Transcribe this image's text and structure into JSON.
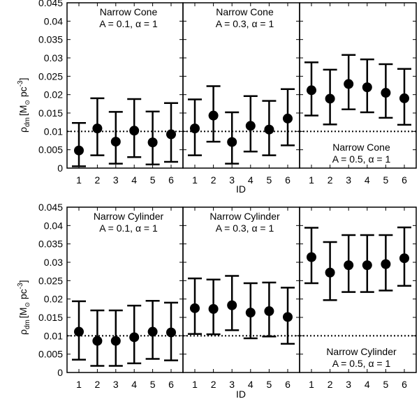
{
  "chart_data": {
    "type": "scatter",
    "title": "",
    "xlabel": "ID",
    "ylabel_main": "ρ",
    "ylabel_sub": "dm",
    "ylabel_units": "[M",
    "ylabel_units_sun": "⊙",
    "ylabel_units_pc": " pc",
    "ylabel_units_exp": "-3",
    "ylabel_units_close": "]",
    "ylim": [
      0,
      0.045
    ],
    "yticks": [
      "0",
      "0.005",
      "0.01",
      "0.015",
      "0.02",
      "0.025",
      "0.03",
      "0.035",
      "0.04",
      "0.045"
    ],
    "ytick_values": [
      0,
      0.005,
      0.01,
      0.015,
      0.02,
      0.025,
      0.03,
      0.035,
      0.04,
      0.045
    ],
    "categories": [
      "1",
      "2",
      "3",
      "4",
      "5",
      "6"
    ],
    "reference_line": 0.01,
    "rows": [
      {
        "name": "Narrow Cone",
        "panels": [
          {
            "label_line1": "Narrow Cone",
            "label_line2": "A = 0.1, α = 1",
            "label_position": "top",
            "points": [
              {
                "id": 1,
                "value": 0.0048,
                "low": 0.0005,
                "high": 0.0123
              },
              {
                "id": 2,
                "value": 0.0108,
                "low": 0.0035,
                "high": 0.019
              },
              {
                "id": 3,
                "value": 0.0072,
                "low": 0.0012,
                "high": 0.0153
              },
              {
                "id": 4,
                "value": 0.0102,
                "low": 0.003,
                "high": 0.0188
              },
              {
                "id": 5,
                "value": 0.007,
                "low": 0.001,
                "high": 0.0154
              },
              {
                "id": 6,
                "value": 0.0092,
                "low": 0.0017,
                "high": 0.0177
              }
            ]
          },
          {
            "label_line1": "Narrow Cone",
            "label_line2": "A = 0.3, α = 1",
            "label_position": "top",
            "points": [
              {
                "id": 1,
                "value": 0.0108,
                "low": 0.0035,
                "high": 0.0187
              },
              {
                "id": 2,
                "value": 0.0143,
                "low": 0.0072,
                "high": 0.0223
              },
              {
                "id": 3,
                "value": 0.0071,
                "low": 0.0012,
                "high": 0.0152
              },
              {
                "id": 4,
                "value": 0.0115,
                "low": 0.0045,
                "high": 0.0196
              },
              {
                "id": 5,
                "value": 0.0105,
                "low": 0.0035,
                "high": 0.0183
              },
              {
                "id": 6,
                "value": 0.0135,
                "low": 0.0062,
                "high": 0.0215
              }
            ]
          },
          {
            "label_line1": "Narrow Cone",
            "label_line2": "A = 0.5, α = 1",
            "label_position": "bottom",
            "points": [
              {
                "id": 1,
                "value": 0.0212,
                "low": 0.0143,
                "high": 0.0288
              },
              {
                "id": 2,
                "value": 0.0189,
                "low": 0.0119,
                "high": 0.0268
              },
              {
                "id": 3,
                "value": 0.0229,
                "low": 0.016,
                "high": 0.0308
              },
              {
                "id": 4,
                "value": 0.022,
                "low": 0.0152,
                "high": 0.0296
              },
              {
                "id": 5,
                "value": 0.0205,
                "low": 0.0137,
                "high": 0.0283
              },
              {
                "id": 6,
                "value": 0.019,
                "low": 0.0118,
                "high": 0.027
              }
            ]
          }
        ]
      },
      {
        "name": "Narrow Cylinder",
        "panels": [
          {
            "label_line1": "Narrow Cylinder",
            "label_line2": "A = 0.1, α = 1",
            "label_position": "top",
            "points": [
              {
                "id": 1,
                "value": 0.0111,
                "low": 0.0035,
                "high": 0.0194
              },
              {
                "id": 2,
                "value": 0.0086,
                "low": 0.0018,
                "high": 0.0169
              },
              {
                "id": 3,
                "value": 0.0086,
                "low": 0.0018,
                "high": 0.0169
              },
              {
                "id": 4,
                "value": 0.0096,
                "low": 0.0025,
                "high": 0.0182
              },
              {
                "id": 5,
                "value": 0.0111,
                "low": 0.0037,
                "high": 0.0195
              },
              {
                "id": 6,
                "value": 0.0109,
                "low": 0.0033,
                "high": 0.019
              }
            ]
          },
          {
            "label_line1": "Narrow Cylinder",
            "label_line2": "A = 0.3, α = 1",
            "label_position": "top",
            "points": [
              {
                "id": 1,
                "value": 0.0175,
                "low": 0.0105,
                "high": 0.0256
              },
              {
                "id": 2,
                "value": 0.0173,
                "low": 0.0104,
                "high": 0.0253
              },
              {
                "id": 3,
                "value": 0.0183,
                "low": 0.0115,
                "high": 0.0263
              },
              {
                "id": 4,
                "value": 0.0163,
                "low": 0.0093,
                "high": 0.0243
              },
              {
                "id": 5,
                "value": 0.0167,
                "low": 0.0098,
                "high": 0.0245
              },
              {
                "id": 6,
                "value": 0.0151,
                "low": 0.0078,
                "high": 0.0231
              }
            ]
          },
          {
            "label_line1": "Narrow Cylinder",
            "label_line2": "A = 0.5, α = 1",
            "label_position": "bottom",
            "points": [
              {
                "id": 1,
                "value": 0.0314,
                "low": 0.0243,
                "high": 0.0394
              },
              {
                "id": 2,
                "value": 0.0272,
                "low": 0.0197,
                "high": 0.0355
              },
              {
                "id": 3,
                "value": 0.0292,
                "low": 0.0219,
                "high": 0.0374
              },
              {
                "id": 4,
                "value": 0.0292,
                "low": 0.0219,
                "high": 0.0374
              },
              {
                "id": 5,
                "value": 0.0295,
                "low": 0.0223,
                "high": 0.0374
              },
              {
                "id": 6,
                "value": 0.0311,
                "low": 0.0236,
                "high": 0.0395
              }
            ]
          }
        ]
      }
    ]
  }
}
